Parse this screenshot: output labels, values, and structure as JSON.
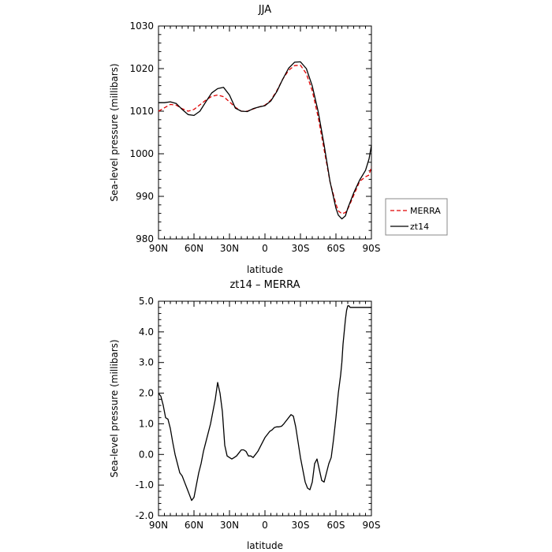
{
  "chart_data": [
    {
      "type": "line",
      "title": "JJA",
      "xlabel": "latitude",
      "ylabel": "Sea-level pressure (millibars)",
      "xlim": [
        90,
        -90
      ],
      "ylim": [
        980,
        1030
      ],
      "xticks": [
        90,
        60,
        30,
        0,
        -30,
        -60,
        -90
      ],
      "xtick_labels": [
        "90N",
        "60N",
        "30N",
        "0",
        "30S",
        "60S",
        "90S"
      ],
      "yticks": [
        980,
        990,
        1000,
        1010,
        1020,
        1030
      ],
      "ytick_labels": [
        "980",
        "990",
        "1000",
        "1010",
        "1020",
        "1030"
      ],
      "grid": false,
      "legend": "right",
      "series": [
        {
          "name": "MERRA",
          "color": "#e00000",
          "dash": "dashed",
          "x": [
            90,
            85,
            80,
            75,
            70,
            65,
            60,
            55,
            50,
            45,
            40,
            35,
            30,
            25,
            20,
            15,
            10,
            5,
            0,
            -5,
            -10,
            -15,
            -20,
            -25,
            -30,
            -35,
            -40,
            -45,
            -50,
            -55,
            -60,
            -62,
            -65,
            -68,
            -70,
            -75,
            -80,
            -85,
            -88,
            -90
          ],
          "y": [
            1010.0,
            1010.8,
            1011.6,
            1011.4,
            1010.6,
            1010.0,
            1010.4,
            1011.5,
            1012.6,
            1013.5,
            1013.8,
            1013.4,
            1012.2,
            1010.9,
            1010.0,
            1010.0,
            1010.5,
            1011.0,
            1011.4,
            1012.6,
            1014.8,
            1017.5,
            1019.6,
            1020.7,
            1020.8,
            1018.8,
            1014.8,
            1008.6,
            1001.0,
            993.4,
            988.2,
            986.6,
            985.9,
            986.2,
            987.0,
            990.2,
            993.5,
            994.6,
            995.0,
            997.0
          ]
        },
        {
          "name": "zt14",
          "color": "#000000",
          "dash": "solid",
          "x": [
            90,
            85,
            80,
            75,
            70,
            65,
            60,
            55,
            50,
            45,
            40,
            35,
            30,
            25,
            20,
            15,
            10,
            5,
            0,
            -5,
            -10,
            -15,
            -20,
            -25,
            -30,
            -35,
            -40,
            -45,
            -50,
            -55,
            -60,
            -62,
            -65,
            -68,
            -70,
            -75,
            -80,
            -85,
            -88,
            -90
          ],
          "y": [
            1012.0,
            1012.0,
            1012.2,
            1011.8,
            1010.4,
            1009.2,
            1009.0,
            1010.0,
            1012.2,
            1014.3,
            1015.3,
            1015.6,
            1013.8,
            1010.7,
            1010.0,
            1009.9,
            1010.6,
            1011.0,
            1011.3,
            1012.4,
            1014.6,
            1017.5,
            1020.1,
            1021.5,
            1021.6,
            1020.0,
            1015.9,
            1009.9,
            1002.1,
            993.5,
            987.2,
            985.6,
            984.7,
            985.4,
            987.2,
            990.8,
            993.8,
            996.1,
            998.8,
            1002.0
          ]
        }
      ]
    },
    {
      "type": "line",
      "title": "zt14 – MERRA",
      "xlabel": "latitude",
      "ylabel": "Sea-level pressure (millibars)",
      "xlim": [
        90,
        -90
      ],
      "ylim": [
        -2,
        5
      ],
      "xticks": [
        90,
        60,
        30,
        0,
        -30,
        -60,
        -90
      ],
      "xtick_labels": [
        "90N",
        "60N",
        "30N",
        "0",
        "30S",
        "60S",
        "90S"
      ],
      "yticks": [
        -2,
        -1,
        0,
        1,
        2,
        3,
        4,
        5
      ],
      "ytick_labels": [
        "-2.0",
        "-1.0",
        "0.0",
        "1.0",
        "2.0",
        "3.0",
        "4.0",
        "5.0"
      ],
      "grid": false,
      "series": [
        {
          "color": "#000000",
          "dash": "solid",
          "x": [
            90,
            88,
            86,
            84,
            82,
            80,
            78,
            76,
            74,
            72,
            70,
            68,
            66,
            64,
            62,
            60,
            58,
            56,
            54,
            52,
            50,
            48,
            46,
            44,
            42,
            40,
            38,
            36,
            34,
            32,
            30,
            28,
            26,
            24,
            22,
            20,
            18,
            16,
            14,
            12,
            10,
            8,
            6,
            4,
            2,
            0,
            -2,
            -4,
            -6,
            -8,
            -10,
            -12,
            -14,
            -16,
            -18,
            -20,
            -22,
            -24,
            -26,
            -28,
            -30,
            -32,
            -34,
            -36,
            -38,
            -40,
            -42,
            -44,
            -46,
            -48,
            -50,
            -52,
            -54,
            -56,
            -58,
            -60,
            -62,
            -64,
            -65,
            -66,
            -67,
            -68,
            -69,
            -70,
            -71,
            -72,
            -74,
            -76,
            -78,
            -80,
            -82,
            -84,
            -86,
            -87,
            -88,
            -89,
            -90
          ],
          "y": [
            2.0,
            1.9,
            1.6,
            1.2,
            1.15,
            0.85,
            0.4,
            0.0,
            -0.3,
            -0.6,
            -0.7,
            -0.9,
            -1.1,
            -1.3,
            -1.5,
            -1.4,
            -1.0,
            -0.6,
            -0.3,
            0.1,
            0.4,
            0.7,
            1.0,
            1.4,
            1.8,
            2.35,
            2.0,
            1.4,
            0.3,
            -0.05,
            -0.1,
            -0.15,
            -0.1,
            -0.05,
            0.05,
            0.15,
            0.15,
            0.1,
            -0.05,
            -0.05,
            -0.1,
            0.0,
            0.1,
            0.25,
            0.4,
            0.55,
            0.65,
            0.75,
            0.8,
            0.88,
            0.9,
            0.9,
            0.92,
            1.0,
            1.1,
            1.2,
            1.3,
            1.25,
            0.9,
            0.4,
            -0.1,
            -0.5,
            -0.9,
            -1.1,
            -1.15,
            -0.9,
            -0.3,
            -0.15,
            -0.5,
            -0.85,
            -0.9,
            -0.6,
            -0.3,
            -0.1,
            0.5,
            1.2,
            2.0,
            2.6,
            3.0,
            3.6,
            4.0,
            4.4,
            4.7,
            4.85,
            4.85,
            4.8,
            4.8,
            4.8,
            4.8,
            4.8,
            4.8,
            4.8,
            4.8,
            4.8,
            4.8,
            4.8,
            4.8
          ]
        }
      ]
    }
  ]
}
